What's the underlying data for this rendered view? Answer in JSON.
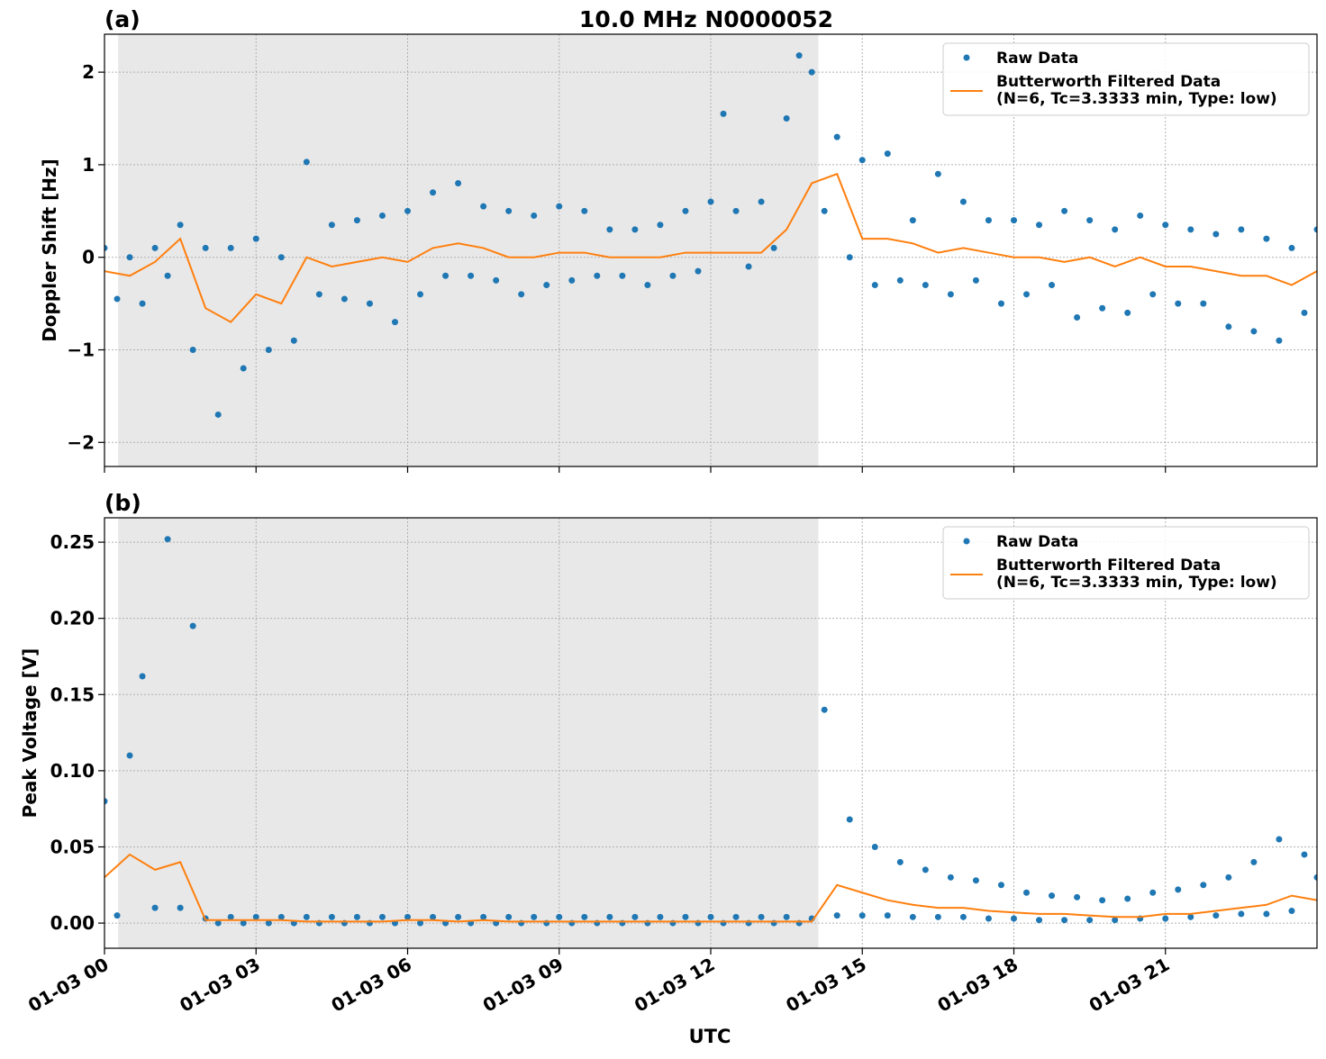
{
  "chart_data": [
    {
      "type": "line",
      "title": "10.0 MHz N0000052",
      "panel_label": "(a)",
      "ylabel": "Doppler Shift [Hz]",
      "xlim": [
        0,
        24
      ],
      "ylim": [
        -2.26,
        2.41
      ],
      "yticks": [
        {
          "value": -2,
          "label": "−2"
        },
        {
          "value": -1,
          "label": "−1"
        },
        0,
        1,
        2
      ],
      "shade": [
        0.27,
        14.13
      ],
      "shade_color": "#e8e8e8",
      "grid": true,
      "legend": "upper right",
      "series": [
        {
          "name": [
            "Raw Data"
          ],
          "style": "dots",
          "color": "#1f77b4",
          "x": [
            0,
            0.25,
            0.5,
            0.75,
            1,
            1.25,
            1.5,
            1.75,
            2,
            2.25,
            2.5,
            2.75,
            3,
            3.25,
            3.5,
            3.75,
            4,
            4.25,
            4.5,
            4.75,
            5,
            5.25,
            5.5,
            5.75,
            6,
            6.25,
            6.5,
            6.75,
            7,
            7.25,
            7.5,
            7.75,
            8,
            8.25,
            8.5,
            8.75,
            9,
            9.25,
            9.5,
            9.75,
            10,
            10.25,
            10.5,
            10.75,
            11,
            11.25,
            11.5,
            11.75,
            12,
            12.25,
            12.5,
            12.75,
            13,
            13.25,
            13.5,
            13.75,
            14,
            14.25,
            14.5,
            14.75,
            15,
            15.25,
            15.5,
            15.75,
            16,
            16.25,
            16.5,
            16.75,
            17,
            17.25,
            17.5,
            17.75,
            18,
            18.25,
            18.5,
            18.75,
            19,
            19.25,
            19.5,
            19.75,
            20,
            20.25,
            20.5,
            20.75,
            21,
            21.25,
            21.5,
            21.75,
            22,
            22.25,
            22.5,
            22.75,
            23,
            23.25,
            23.5,
            23.75,
            24
          ],
          "values": [
            0.1,
            -0.45,
            0.0,
            -0.5,
            0.1,
            -0.2,
            0.35,
            -1.0,
            0.1,
            -1.7,
            0.1,
            -1.2,
            0.2,
            -1.0,
            0.0,
            -0.9,
            1.03,
            -0.4,
            0.35,
            -0.45,
            0.4,
            -0.5,
            0.45,
            -0.7,
            0.5,
            -0.4,
            0.7,
            -0.2,
            0.8,
            -0.2,
            0.55,
            -0.25,
            0.5,
            -0.4,
            0.45,
            -0.3,
            0.55,
            -0.25,
            0.5,
            -0.2,
            0.3,
            -0.2,
            0.3,
            -0.3,
            0.35,
            -0.2,
            0.5,
            -0.15,
            0.6,
            1.55,
            0.5,
            -0.1,
            0.6,
            0.1,
            1.5,
            2.18,
            2.0,
            0.5,
            1.3,
            0.0,
            1.05,
            -0.3,
            1.12,
            -0.25,
            0.4,
            -0.3,
            0.9,
            -0.4,
            0.6,
            -0.25,
            0.4,
            -0.5,
            0.4,
            -0.4,
            0.35,
            -0.3,
            0.5,
            -0.65,
            0.4,
            -0.55,
            0.3,
            -0.6,
            0.45,
            -0.4,
            0.35,
            -0.5,
            0.3,
            -0.5,
            0.25,
            -0.75,
            0.3,
            -0.8,
            0.2,
            -0.9,
            0.1,
            -0.6,
            0.3
          ]
        },
        {
          "name": [
            "Butterworth Filtered Data",
            "(N=6, Tc=3.3333 min, Type: low)"
          ],
          "style": "line",
          "color": "#ff7f0e",
          "x": [
            0,
            0.5,
            1,
            1.5,
            2,
            2.5,
            3,
            3.5,
            4,
            4.5,
            5,
            5.5,
            6,
            6.5,
            7,
            7.5,
            8,
            8.5,
            9,
            9.5,
            10,
            10.5,
            11,
            11.5,
            12,
            12.5,
            13,
            13.5,
            14,
            14.5,
            15,
            15.5,
            16,
            16.5,
            17,
            17.5,
            18,
            18.5,
            19,
            19.5,
            20,
            20.5,
            21,
            21.5,
            22,
            22.5,
            23,
            23.5,
            24
          ],
          "values": [
            -0.15,
            -0.2,
            -0.05,
            0.2,
            -0.55,
            -0.7,
            -0.4,
            -0.5,
            0.0,
            -0.1,
            -0.05,
            0.0,
            -0.05,
            0.1,
            0.15,
            0.1,
            0.0,
            0.0,
            0.05,
            0.05,
            0.0,
            0.0,
            0.0,
            0.05,
            0.05,
            0.05,
            0.05,
            0.3,
            0.8,
            0.9,
            0.2,
            0.2,
            0.15,
            0.05,
            0.1,
            0.05,
            0.0,
            0.0,
            -0.05,
            0.0,
            -0.1,
            0.0,
            -0.1,
            -0.1,
            -0.15,
            -0.2,
            -0.2,
            -0.3,
            -0.15
          ]
        }
      ]
    },
    {
      "type": "line",
      "panel_label": "(b)",
      "ylabel": "Peak Voltage [V]",
      "xlabel": "UTC",
      "xlim": [
        0,
        24
      ],
      "ylim": [
        -0.0165,
        0.266
      ],
      "xticks": [
        {
          "value": 0,
          "label": "01-03 00"
        },
        {
          "value": 3,
          "label": "01-03 03"
        },
        {
          "value": 6,
          "label": "01-03 06"
        },
        {
          "value": 9,
          "label": "01-03 09"
        },
        {
          "value": 12,
          "label": "01-03 12"
        },
        {
          "value": 15,
          "label": "01-03 15"
        },
        {
          "value": 18,
          "label": "01-03 18"
        },
        {
          "value": 21,
          "label": "01-03 21"
        }
      ],
      "yticks": [
        {
          "value": 0,
          "label": "0.00"
        },
        {
          "value": 0.05,
          "label": "0.05"
        },
        {
          "value": 0.1,
          "label": "0.10"
        },
        {
          "value": 0.15,
          "label": "0.15"
        },
        {
          "value": 0.2,
          "label": "0.20"
        },
        {
          "value": 0.25,
          "label": "0.25"
        }
      ],
      "shade": [
        0.27,
        14.13
      ],
      "shade_color": "#e8e8e8",
      "grid": true,
      "legend": "upper right",
      "series": [
        {
          "name": [
            "Raw Data"
          ],
          "style": "dots",
          "color": "#1f77b4",
          "x": [
            0,
            0.25,
            0.5,
            0.75,
            1,
            1.25,
            1.5,
            1.75,
            2,
            2.25,
            2.5,
            2.75,
            3,
            3.25,
            3.5,
            3.75,
            4,
            4.25,
            4.5,
            4.75,
            5,
            5.25,
            5.5,
            5.75,
            6,
            6.25,
            6.5,
            6.75,
            7,
            7.25,
            7.5,
            7.75,
            8,
            8.25,
            8.5,
            8.75,
            9,
            9.25,
            9.5,
            9.75,
            10,
            10.25,
            10.5,
            10.75,
            11,
            11.25,
            11.5,
            11.75,
            12,
            12.25,
            12.5,
            12.75,
            13,
            13.25,
            13.5,
            13.75,
            14,
            14.25,
            14.5,
            14.75,
            15,
            15.25,
            15.5,
            15.75,
            16,
            16.25,
            16.5,
            16.75,
            17,
            17.25,
            17.5,
            17.75,
            18,
            18.25,
            18.5,
            18.75,
            19,
            19.25,
            19.5,
            19.75,
            20,
            20.25,
            20.5,
            20.75,
            21,
            21.25,
            21.5,
            21.75,
            22,
            22.25,
            22.5,
            22.75,
            23,
            23.25,
            23.5,
            23.75,
            24
          ],
          "values": [
            0.08,
            0.005,
            0.11,
            0.162,
            0.01,
            0.252,
            0.01,
            0.195,
            0.003,
            0.0,
            0.004,
            0.0,
            0.004,
            0.0,
            0.004,
            0.0,
            0.004,
            0.0,
            0.004,
            0.0,
            0.004,
            0.0,
            0.004,
            0.0,
            0.004,
            0.0,
            0.004,
            0.0,
            0.004,
            0.0,
            0.004,
            0.0,
            0.004,
            0.0,
            0.004,
            0.0,
            0.004,
            0.0,
            0.004,
            0.0,
            0.004,
            0.0,
            0.004,
            0.0,
            0.004,
            0.0,
            0.004,
            0.0,
            0.004,
            0.0,
            0.004,
            0.0,
            0.004,
            0.0,
            0.004,
            0.0,
            0.003,
            0.14,
            0.005,
            0.068,
            0.005,
            0.05,
            0.005,
            0.04,
            0.004,
            0.035,
            0.004,
            0.03,
            0.004,
            0.028,
            0.003,
            0.025,
            0.003,
            0.02,
            0.002,
            0.018,
            0.002,
            0.017,
            0.002,
            0.015,
            0.002,
            0.016,
            0.003,
            0.02,
            0.003,
            0.022,
            0.004,
            0.025,
            0.005,
            0.03,
            0.006,
            0.04,
            0.006,
            0.055,
            0.008,
            0.045,
            0.03
          ]
        },
        {
          "name": [
            "Butterworth Filtered Data",
            "(N=6, Tc=3.3333 min, Type: low)"
          ],
          "style": "line",
          "color": "#ff7f0e",
          "x": [
            0,
            0.5,
            1,
            1.5,
            2,
            2.5,
            3,
            3.5,
            4,
            4.5,
            5,
            5.5,
            6,
            6.5,
            7,
            7.5,
            8,
            8.5,
            9,
            9.5,
            10,
            10.5,
            11,
            11.5,
            12,
            12.5,
            13,
            13.5,
            14,
            14.5,
            15,
            15.5,
            16,
            16.5,
            17,
            17.5,
            18,
            18.5,
            19,
            19.5,
            20,
            20.5,
            21,
            21.5,
            22,
            22.5,
            23,
            23.5,
            24
          ],
          "values": [
            0.03,
            0.045,
            0.035,
            0.04,
            0.002,
            0.002,
            0.002,
            0.002,
            0.001,
            0.001,
            0.001,
            0.001,
            0.002,
            0.002,
            0.001,
            0.002,
            0.001,
            0.001,
            0.001,
            0.001,
            0.001,
            0.001,
            0.001,
            0.001,
            0.001,
            0.001,
            0.001,
            0.001,
            0.001,
            0.025,
            0.02,
            0.015,
            0.012,
            0.01,
            0.01,
            0.008,
            0.007,
            0.006,
            0.006,
            0.005,
            0.004,
            0.004,
            0.006,
            0.006,
            0.008,
            0.01,
            0.012,
            0.018,
            0.015
          ]
        }
      ]
    }
  ]
}
